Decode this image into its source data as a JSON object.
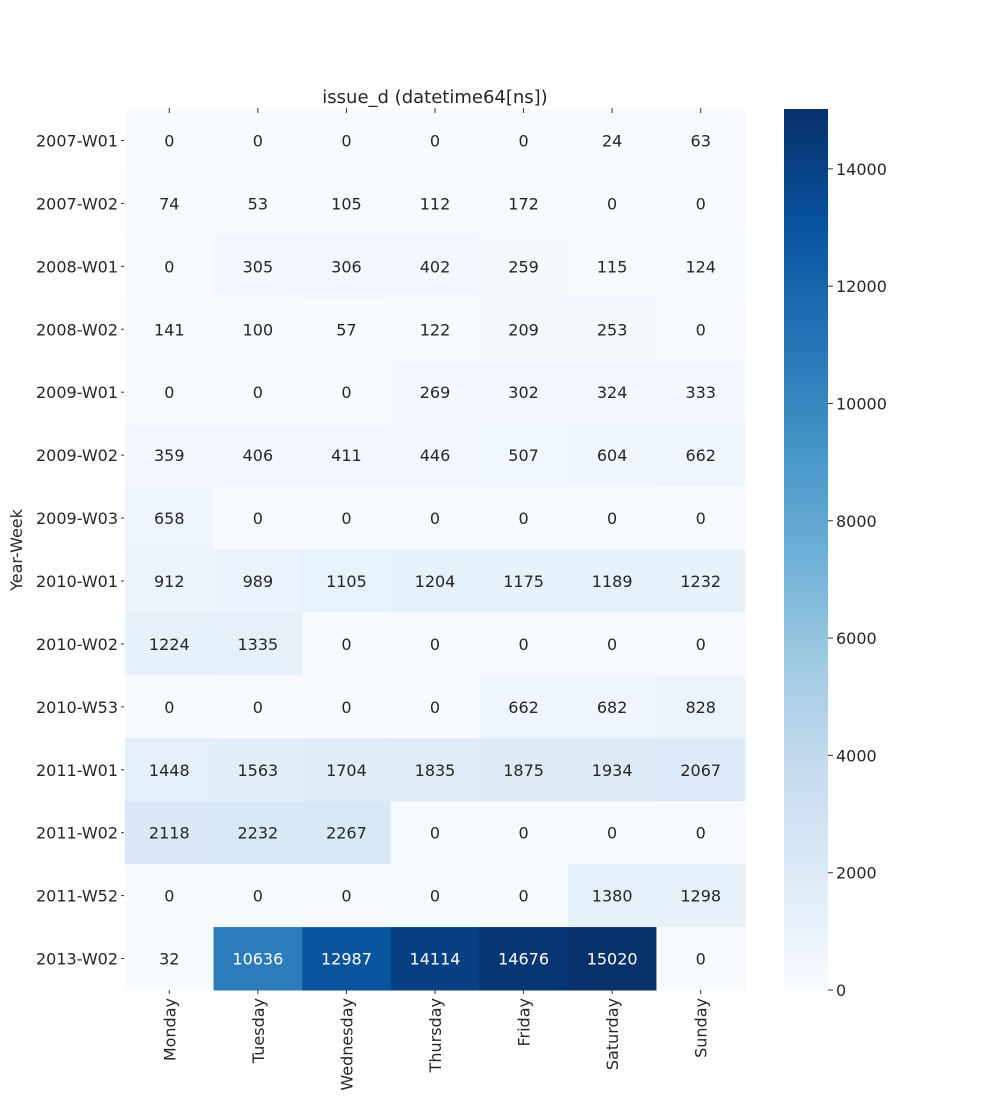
{
  "chart_data": {
    "type": "heatmap",
    "title": "issue_d (datetime64[ns])",
    "ylabel": "Year-Week",
    "categories": [
      "Monday",
      "Tuesday",
      "Wednesday",
      "Thursday",
      "Friday",
      "Saturday",
      "Sunday"
    ],
    "y_categories": [
      "2007-W01",
      "2007-W02",
      "2008-W01",
      "2008-W02",
      "2009-W01",
      "2009-W02",
      "2009-W03",
      "2010-W01",
      "2010-W02",
      "2010-W53",
      "2011-W01",
      "2011-W02",
      "2011-W52",
      "2013-W02"
    ],
    "values": [
      [
        0,
        0,
        0,
        0,
        0,
        24,
        63
      ],
      [
        74,
        53,
        105,
        112,
        172,
        0,
        0
      ],
      [
        0,
        305,
        306,
        402,
        259,
        115,
        124
      ],
      [
        141,
        100,
        57,
        122,
        209,
        253,
        0
      ],
      [
        0,
        0,
        0,
        269,
        302,
        324,
        333
      ],
      [
        359,
        406,
        411,
        446,
        507,
        604,
        662
      ],
      [
        658,
        0,
        0,
        0,
        0,
        0,
        0
      ],
      [
        912,
        989,
        1105,
        1204,
        1175,
        1189,
        1232
      ],
      [
        1224,
        1335,
        0,
        0,
        0,
        0,
        0
      ],
      [
        0,
        0,
        0,
        0,
        662,
        682,
        828
      ],
      [
        1448,
        1563,
        1704,
        1835,
        1875,
        1934,
        2067
      ],
      [
        2118,
        2232,
        2267,
        0,
        0,
        0,
        0
      ],
      [
        0,
        0,
        0,
        0,
        0,
        1380,
        1298
      ],
      [
        32,
        10636,
        12987,
        14114,
        14676,
        15020,
        0
      ]
    ],
    "clim": [
      0,
      15020
    ],
    "cticks": [
      0,
      2000,
      4000,
      6000,
      8000,
      10000,
      12000,
      14000
    ],
    "colormap": [
      "#f7fbff",
      "#deebf7",
      "#c6dbef",
      "#9ecae1",
      "#6baed6",
      "#4292c6",
      "#2171b5",
      "#08519c",
      "#08306b"
    ]
  }
}
